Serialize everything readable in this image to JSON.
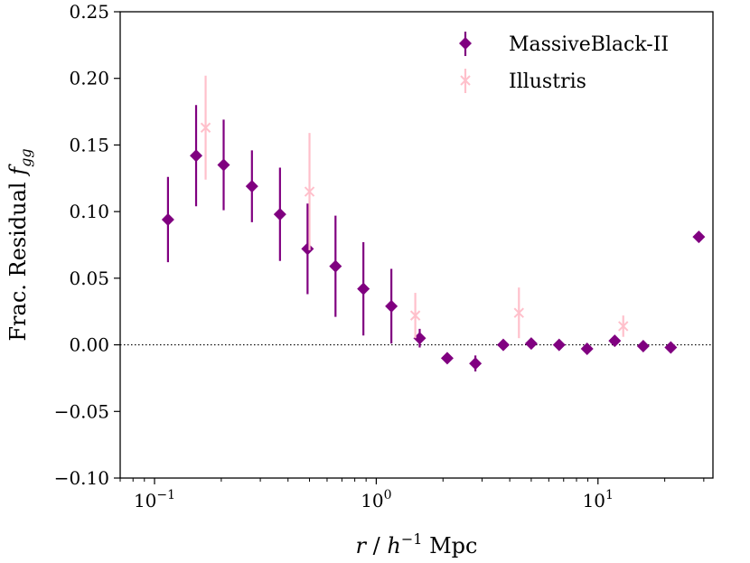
{
  "chart_data": {
    "type": "scatter",
    "title": "",
    "xlabel_parts": {
      "r": "r",
      "slash": " / ",
      "h": "h",
      "exp": "−1",
      "unit": " Mpc"
    },
    "ylabel_parts": {
      "main": "Frac. Residual ",
      "f": "f",
      "sub": "gg"
    },
    "x_scale": "log",
    "xlim": [
      0.07,
      33
    ],
    "ylim": [
      -0.1,
      0.25
    ],
    "grid": false,
    "legend_position": "top-right",
    "reference_line_y": 0.0,
    "x_ticks": [
      {
        "value": 0.1,
        "base": "10",
        "exp": "−1"
      },
      {
        "value": 1,
        "base": "10",
        "exp": "0"
      },
      {
        "value": 10,
        "base": "10",
        "exp": "1"
      }
    ],
    "y_ticks": [
      {
        "value": 0.25,
        "label": "0.25"
      },
      {
        "value": 0.2,
        "label": "0.20"
      },
      {
        "value": 0.15,
        "label": "0.15"
      },
      {
        "value": 0.1,
        "label": "0.10"
      },
      {
        "value": 0.05,
        "label": "0.05"
      },
      {
        "value": 0.0,
        "label": "0.00"
      },
      {
        "value": -0.05,
        "label": "−0.05"
      },
      {
        "value": -0.1,
        "label": "−0.10"
      }
    ],
    "series": [
      {
        "name": "MassiveBlack-II",
        "color": "#800080",
        "marker": "diamond",
        "x": [
          0.115,
          0.154,
          0.205,
          0.275,
          0.368,
          0.49,
          0.655,
          0.875,
          1.17,
          1.57,
          2.09,
          2.8,
          3.74,
          5.0,
          6.68,
          8.93,
          11.9,
          16.0,
          21.3,
          28.5
        ],
        "y": [
          0.094,
          0.142,
          0.135,
          0.119,
          0.098,
          0.072,
          0.059,
          0.042,
          0.029,
          0.005,
          -0.01,
          -0.014,
          0.0,
          0.001,
          0.0,
          -0.003,
          0.003,
          -0.001,
          -0.002,
          0.081
        ],
        "err": [
          0.032,
          0.038,
          0.034,
          0.027,
          0.035,
          0.034,
          0.038,
          0.035,
          0.028,
          0.007,
          0.002,
          0.006,
          0.001,
          0.001,
          0.001,
          0.002,
          0.002,
          0.001,
          0.001,
          0.001
        ]
      },
      {
        "name": "Illustris",
        "color": "#ffc0cb",
        "marker": "x",
        "x": [
          0.17,
          0.5,
          1.5,
          4.4,
          13.0
        ],
        "y": [
          0.163,
          0.115,
          0.022,
          0.024,
          0.014
        ],
        "err": [
          0.039,
          0.044,
          0.017,
          0.019,
          0.008
        ]
      }
    ]
  }
}
